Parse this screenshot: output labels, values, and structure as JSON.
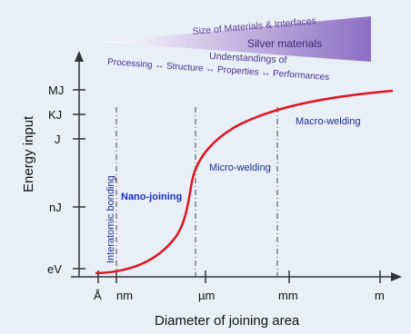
{
  "wedge": {
    "size_label": "Size of Materials & Interfaces",
    "silver_label": "Silver materials",
    "understandings_label": "Understandings of",
    "processing_label": "Processing ↔ Structure ↔ Properties ↔ Performances",
    "gradient_start": "#ffffff",
    "gradient_end": "#8c6fc4"
  },
  "axes": {
    "ylabel": "Energy input",
    "xlabel": "Diameter of joining area",
    "y_ticks": [
      "MJ",
      "KJ",
      "J",
      "nJ",
      "eV"
    ],
    "x_ticks": [
      "Å",
      "nm",
      "µm",
      "mm",
      "m"
    ]
  },
  "regions": {
    "interatomic": "Interatomic bonding",
    "nano": "Nano-joining",
    "micro": "Micro-welding",
    "macro": "Macro-welding"
  },
  "colors": {
    "curve": "#e0141e",
    "nano_text": "#1a2fc9",
    "macro_text": "#1a2f8a",
    "micro_text": "#1a2f8a",
    "interatomic_text": "#1a2f8a",
    "background": "#e8eff7"
  }
}
